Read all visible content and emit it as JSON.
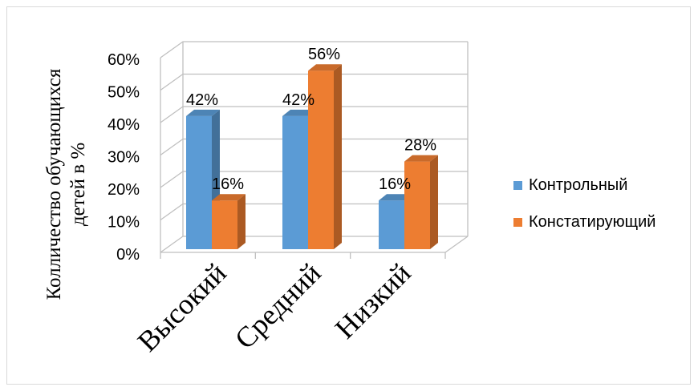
{
  "chart_data": {
    "type": "bar",
    "title": "",
    "ylabel_lines": [
      "Колличество обучающихся",
      "детей в %"
    ],
    "categories": [
      "Высокий",
      "Средний",
      "Низкий"
    ],
    "series": [
      {
        "name": "Контрольный",
        "values": [
          42,
          42,
          16
        ],
        "labels": [
          "42%",
          "42%",
          "16%"
        ],
        "color": "#5b9bd5"
      },
      {
        "name": "Констатирующий",
        "values": [
          16,
          56,
          28
        ],
        "labels": [
          "16%",
          "56%",
          "28%"
        ],
        "color": "#ed7d31"
      }
    ],
    "y_ticks": [
      0,
      10,
      20,
      30,
      40,
      50,
      60
    ],
    "y_tick_labels": [
      "0%",
      "10%",
      "20%",
      "30%",
      "40%",
      "50%",
      "60%"
    ],
    "ylim": [
      0,
      60
    ],
    "grid": true,
    "legend_position": "right",
    "three_d": true
  }
}
